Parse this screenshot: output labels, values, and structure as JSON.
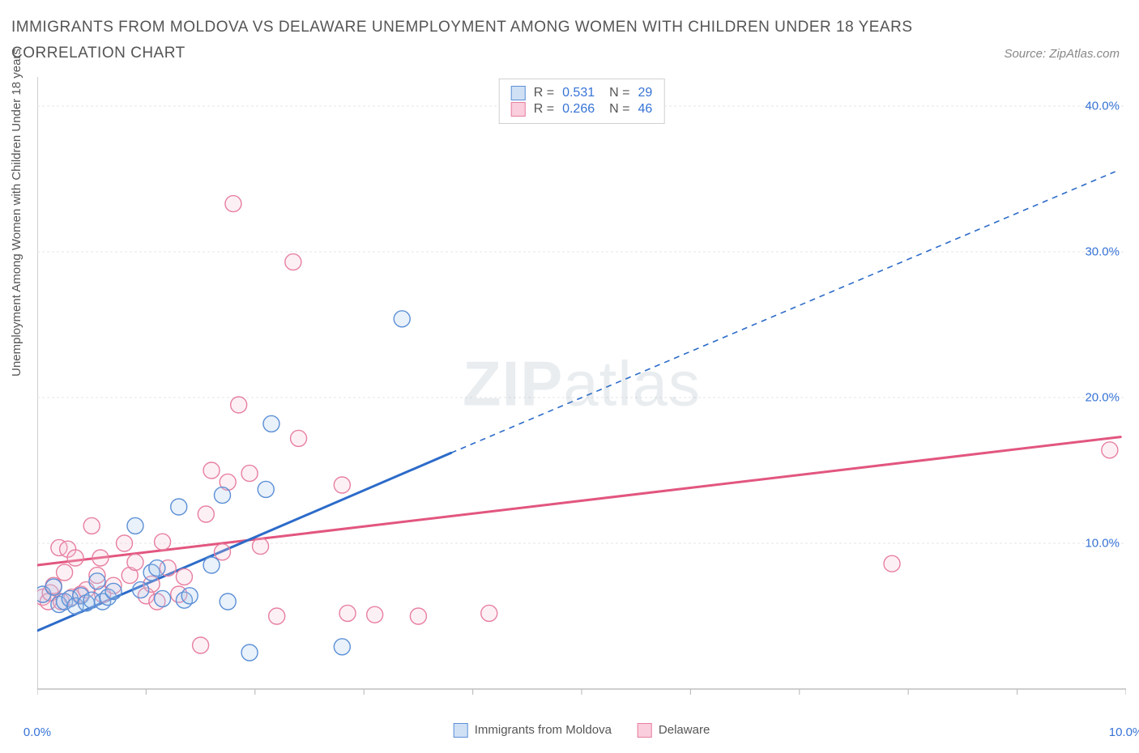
{
  "title": "IMMIGRANTS FROM MOLDOVA VS DELAWARE UNEMPLOYMENT AMONG WOMEN WITH CHILDREN UNDER 18 YEARS CORRELATION CHART",
  "source": "Source: ZipAtlas.com",
  "ylabel": "Unemployment Among Women with Children Under 18 years",
  "watermark_a": "ZIP",
  "watermark_b": "atlas",
  "chart": {
    "type": "scatter-with-regression",
    "plot_bg": "#ffffff",
    "border_color": "#bfbfbf",
    "grid_color": "#e6e6e6",
    "tick_color": "#bfbfbf",
    "label_color": "#3673d6",
    "title_color": "#555555",
    "xlim": [
      0,
      10
    ],
    "ylim": [
      0,
      42
    ],
    "xticks": [
      0,
      1,
      2,
      3,
      4,
      5,
      6,
      7,
      8,
      9,
      10
    ],
    "xtick_labels": {
      "0": "0.0%",
      "10": "10.0%"
    },
    "yticks": [
      10,
      20,
      30,
      40
    ],
    "ytick_labels": {
      "10": "10.0%",
      "20": "20.0%",
      "30": "30.0%",
      "40": "40.0%"
    },
    "marker_radius": 10,
    "marker_stroke_width": 1.4,
    "marker_fill_opacity": 0.25,
    "series": [
      {
        "id": "moldova",
        "label": "Immigrants from Moldova",
        "color_stroke": "#5b8fd6",
        "color_fill": "#a9c7ea",
        "legend_fill": "#cfe0f5",
        "legend_border": "#5b8fd6",
        "R": 0.531,
        "N": 29,
        "regression": {
          "x1": 0.0,
          "y1": 4.0,
          "x2": 3.8,
          "y2": 16.2,
          "dash_x2": 9.9,
          "dash_y2": 35.5,
          "solid_color": "#2c6bc9",
          "solid_width": 3,
          "dash_width": 1.6,
          "dash_pattern": "7 6"
        },
        "points": [
          [
            0.05,
            6.5
          ],
          [
            0.15,
            7.0
          ],
          [
            0.2,
            5.8
          ],
          [
            0.25,
            6.0
          ],
          [
            0.3,
            6.2
          ],
          [
            0.35,
            5.7
          ],
          [
            0.4,
            6.4
          ],
          [
            0.45,
            5.9
          ],
          [
            0.5,
            6.1
          ],
          [
            0.55,
            7.4
          ],
          [
            0.6,
            6.0
          ],
          [
            0.65,
            6.3
          ],
          [
            0.7,
            6.7
          ],
          [
            0.9,
            11.2
          ],
          [
            0.95,
            6.8
          ],
          [
            1.05,
            8.0
          ],
          [
            1.1,
            8.3
          ],
          [
            1.15,
            6.2
          ],
          [
            1.3,
            12.5
          ],
          [
            1.35,
            6.1
          ],
          [
            1.4,
            6.4
          ],
          [
            1.6,
            8.5
          ],
          [
            1.7,
            13.3
          ],
          [
            1.75,
            6.0
          ],
          [
            1.95,
            2.5
          ],
          [
            2.1,
            13.7
          ],
          [
            2.15,
            18.2
          ],
          [
            2.8,
            2.9
          ],
          [
            3.35,
            25.4
          ]
        ]
      },
      {
        "id": "delaware",
        "label": "Delaware",
        "color_stroke": "#e77fa0",
        "color_fill": "#f6c4d4",
        "legend_fill": "#facedc",
        "legend_border": "#e77fa0",
        "R": 0.266,
        "N": 46,
        "regression": {
          "x1": 0.0,
          "y1": 8.5,
          "x2": 9.95,
          "y2": 17.3,
          "solid_color": "#e2567f",
          "solid_width": 3
        },
        "points": [
          [
            0.05,
            6.3
          ],
          [
            0.1,
            6.0
          ],
          [
            0.12,
            6.6
          ],
          [
            0.15,
            7.1
          ],
          [
            0.2,
            9.7
          ],
          [
            0.22,
            6.0
          ],
          [
            0.25,
            8.0
          ],
          [
            0.28,
            9.6
          ],
          [
            0.32,
            6.3
          ],
          [
            0.35,
            9.0
          ],
          [
            0.4,
            6.5
          ],
          [
            0.45,
            6.8
          ],
          [
            0.5,
            11.2
          ],
          [
            0.55,
            7.8
          ],
          [
            0.58,
            9.0
          ],
          [
            0.6,
            6.5
          ],
          [
            0.7,
            7.1
          ],
          [
            0.8,
            10.0
          ],
          [
            0.85,
            7.8
          ],
          [
            0.9,
            8.7
          ],
          [
            1.0,
            6.4
          ],
          [
            1.05,
            7.2
          ],
          [
            1.1,
            6.0
          ],
          [
            1.15,
            10.1
          ],
          [
            1.2,
            8.3
          ],
          [
            1.3,
            6.5
          ],
          [
            1.35,
            7.7
          ],
          [
            1.5,
            3.0
          ],
          [
            1.6,
            15.0
          ],
          [
            1.7,
            9.4
          ],
          [
            1.75,
            14.2
          ],
          [
            1.8,
            33.3
          ],
          [
            1.85,
            19.5
          ],
          [
            1.95,
            14.8
          ],
          [
            2.05,
            9.8
          ],
          [
            2.2,
            5.0
          ],
          [
            2.35,
            29.3
          ],
          [
            2.4,
            17.2
          ],
          [
            2.8,
            14.0
          ],
          [
            2.85,
            5.2
          ],
          [
            3.1,
            5.1
          ],
          [
            3.5,
            5.0
          ],
          [
            4.15,
            5.2
          ],
          [
            7.85,
            8.6
          ],
          [
            9.85,
            16.4
          ],
          [
            1.55,
            12.0
          ]
        ]
      }
    ],
    "bottom_legend": [
      {
        "series": "moldova"
      },
      {
        "series": "delaware"
      }
    ]
  }
}
